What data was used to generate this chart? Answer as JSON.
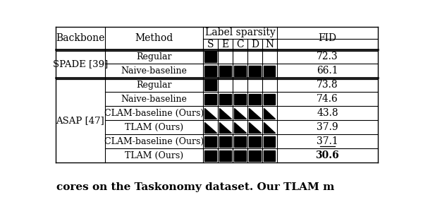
{
  "header_col1": "Backbone",
  "header_col2": "Method",
  "header_sparsity": "Label sparsity",
  "header_sparsity_cols": [
    "S",
    "E",
    "C",
    "D",
    "N"
  ],
  "header_fid": "FID",
  "rows": [
    {
      "backbone": "SPADE [39]",
      "method": "Regular",
      "sparsity": [
        1,
        0,
        0,
        0,
        0
      ],
      "fid": "72.3",
      "bold": false,
      "underline": false,
      "triangle": false
    },
    {
      "backbone": "",
      "method": "Naive-baseline",
      "sparsity": [
        1,
        1,
        1,
        1,
        1
      ],
      "fid": "66.1",
      "bold": false,
      "underline": false,
      "triangle": false
    },
    {
      "backbone": "ASAP [47]",
      "method": "Regular",
      "sparsity": [
        1,
        0,
        0,
        0,
        0
      ],
      "fid": "73.8",
      "bold": false,
      "underline": false,
      "triangle": false
    },
    {
      "backbone": "",
      "method": "Naive-baseline",
      "sparsity": [
        1,
        1,
        1,
        1,
        1
      ],
      "fid": "74.6",
      "bold": false,
      "underline": false,
      "triangle": false
    },
    {
      "backbone": "",
      "method": "CLAM-baseline (Ours)",
      "sparsity": [
        1,
        1,
        1,
        1,
        1
      ],
      "fid": "43.8",
      "bold": false,
      "underline": false,
      "triangle": true
    },
    {
      "backbone": "",
      "method": "TLAM (Ours)",
      "sparsity": [
        1,
        1,
        1,
        1,
        1
      ],
      "fid": "37.9",
      "bold": false,
      "underline": false,
      "triangle": true
    },
    {
      "backbone": "",
      "method": "CLAM-baseline (Ours)",
      "sparsity": [
        1,
        1,
        1,
        1,
        1
      ],
      "fid": "37.1",
      "bold": false,
      "underline": true,
      "triangle": false
    },
    {
      "backbone": "",
      "method": "TLAM (Ours)",
      "sparsity": [
        1,
        1,
        1,
        1,
        1
      ],
      "fid": "30.6",
      "bold": true,
      "underline": false,
      "triangle": false
    }
  ],
  "caption": "cores on the Taskonomy dataset. Our TLAM m",
  "bg_color": "#ffffff"
}
